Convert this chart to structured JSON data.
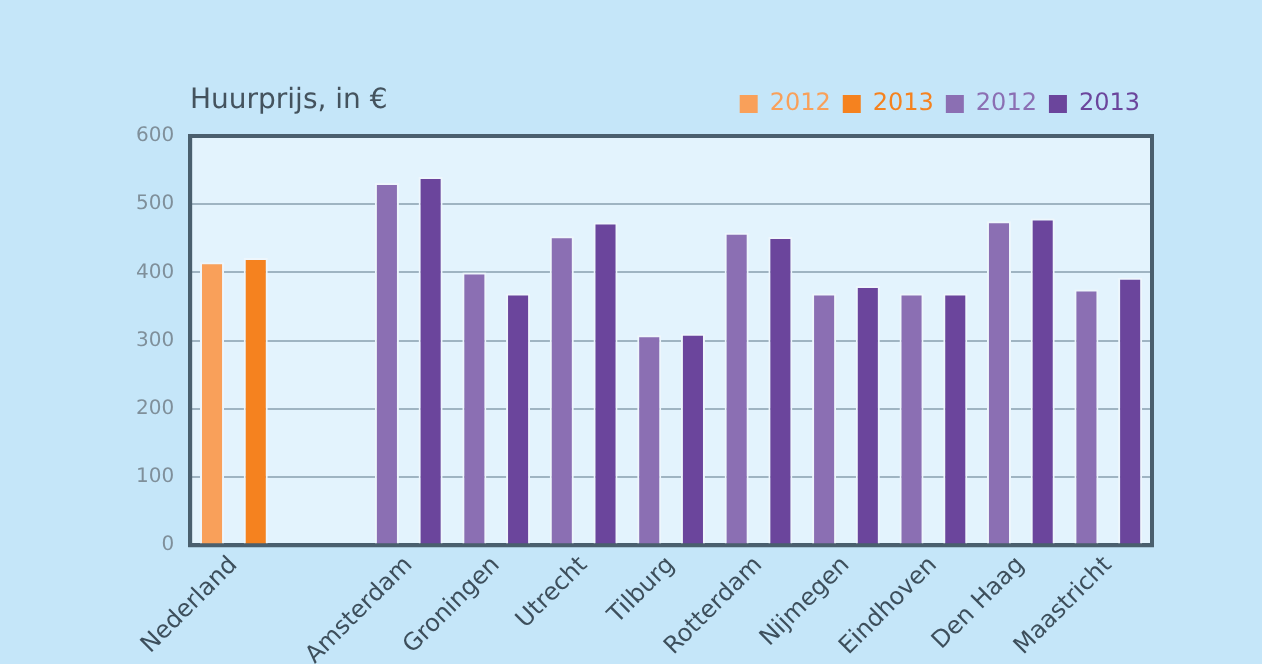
{
  "chart_data": {
    "type": "bar",
    "title": "Huurprijs, in €",
    "categories": [
      "Nederland",
      null,
      "Amsterdam",
      "Groningen",
      "Utrecht",
      "Tilburg",
      "Rotterdam",
      "Nijmegen",
      "Eindhoven",
      "Den Haag",
      "Maastricht"
    ],
    "series": [
      {
        "name": "2012",
        "color": "#f9a05a",
        "values": [
          415,
          null,
          null,
          null,
          null,
          null,
          null,
          null,
          null,
          null,
          null
        ]
      },
      {
        "name": "2013",
        "color": "#f5821f",
        "values": [
          421,
          null,
          null,
          null,
          null,
          null,
          null,
          null,
          null,
          null,
          null
        ]
      },
      {
        "name": "2012",
        "color": "#8b6fb3",
        "values": [
          null,
          null,
          531,
          400,
          453,
          308,
          458,
          369,
          369,
          475,
          375
        ]
      },
      {
        "name": "2013",
        "color": "#6b459c",
        "values": [
          null,
          null,
          540,
          369,
          473,
          310,
          452,
          380,
          369,
          479,
          392
        ]
      }
    ],
    "ylim": [
      0,
      600
    ],
    "yticks": [
      0,
      100,
      200,
      300,
      400,
      500,
      600
    ],
    "grid": "y",
    "legend": "top right"
  }
}
